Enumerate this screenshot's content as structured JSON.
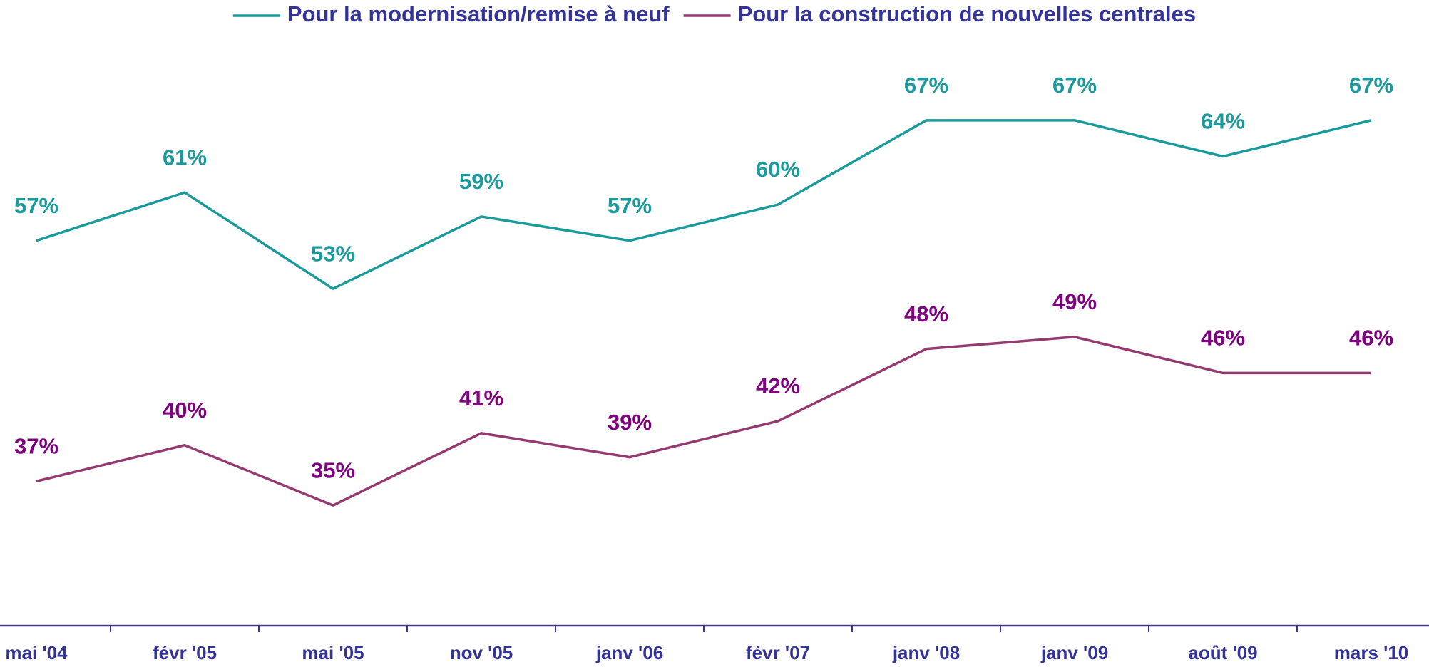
{
  "chart_data": {
    "type": "line",
    "categories": [
      "mai '04",
      "févr '05",
      "mai '05",
      "nov '05",
      "janv '06",
      "févr '07",
      "janv '08",
      "janv '09",
      "août '09",
      "mars '10"
    ],
    "ylim": [
      25,
      77
    ],
    "legend": "top",
    "series": [
      {
        "name": "Pour la modernisation/remise à neuf",
        "color": "#1a9a9a",
        "label_color": "#1a9a9a",
        "values": [
          57,
          61,
          53,
          59,
          57,
          60,
          67,
          67,
          64,
          67
        ],
        "value_labels": [
          "57%",
          "61%",
          "53%",
          "59%",
          "57%",
          "60%",
          "67%",
          "67%",
          "64%",
          "67%"
        ]
      },
      {
        "name": "Pour la construction de nouvelles centrales",
        "color": "#953a6e",
        "label_color": "#800080",
        "values": [
          37,
          40,
          35,
          41,
          39,
          42,
          48,
          49,
          46,
          46
        ],
        "value_labels": [
          "37%",
          "40%",
          "35%",
          "41%",
          "39%",
          "42%",
          "48%",
          "49%",
          "46%",
          "46%"
        ]
      }
    ]
  }
}
